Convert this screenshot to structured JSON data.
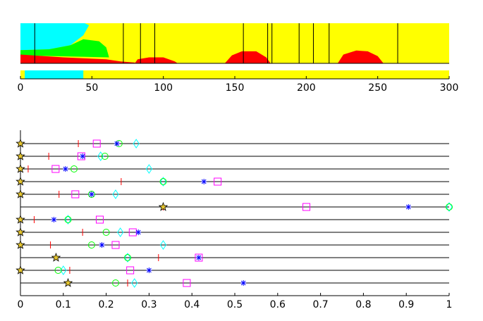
{
  "colors": {
    "yellow": "#ffff00",
    "cyan": "#00ffff",
    "green": "#00ff00",
    "red": "#ff0000",
    "blue": "#0000ff",
    "magenta": "#ff00ff",
    "star": "#e6c630",
    "line": "#000000"
  },
  "chart_data": [
    {
      "type": "area",
      "name_key": "top-band-chart",
      "xlim": [
        0,
        300
      ],
      "x_ticks": [
        0,
        50,
        100,
        150,
        200,
        250,
        300
      ],
      "x_tick_labels": [
        "0",
        "50",
        "100",
        "150",
        "200",
        "250",
        "300"
      ],
      "segments_x": [
        10,
        72,
        84,
        94,
        156,
        173,
        176,
        195,
        205,
        216,
        264
      ],
      "cyan_profile": [
        [
          0,
          1
        ],
        [
          45,
          1
        ],
        [
          48,
          0.95
        ],
        [
          44,
          0.7
        ],
        [
          35,
          0.45
        ],
        [
          20,
          0.35
        ],
        [
          0,
          0.33
        ]
      ],
      "green_profile": [
        [
          0,
          0.33
        ],
        [
          20,
          0.35
        ],
        [
          35,
          0.45
        ],
        [
          44,
          0.6
        ],
        [
          55,
          0.55
        ],
        [
          60,
          0.4
        ],
        [
          62,
          0.15
        ],
        [
          0,
          0.2
        ]
      ],
      "red_profiles": [
        [
          [
            0,
            0
          ],
          [
            0,
            0.22
          ],
          [
            30,
            0.15
          ],
          [
            60,
            0.1
          ],
          [
            70,
            0.05
          ],
          [
            80,
            0.02
          ],
          [
            80,
            0
          ]
        ],
        [
          [
            80,
            0
          ],
          [
            82,
            0.1
          ],
          [
            90,
            0.15
          ],
          [
            100,
            0.15
          ],
          [
            108,
            0.05
          ],
          [
            110,
            0
          ]
        ],
        [
          [
            143,
            0
          ],
          [
            148,
            0.2
          ],
          [
            155,
            0.3
          ],
          [
            165,
            0.3
          ],
          [
            172,
            0.15
          ],
          [
            175,
            0
          ]
        ],
        [
          [
            222,
            0
          ],
          [
            226,
            0.22
          ],
          [
            235,
            0.32
          ],
          [
            243,
            0.3
          ],
          [
            250,
            0.18
          ],
          [
            254,
            0
          ]
        ]
      ],
      "bar_cyan_range": [
        3,
        44
      ]
    },
    {
      "type": "scatter",
      "name_key": "marker-rows-chart",
      "xlim": [
        0,
        1
      ],
      "x_ticks": [
        0,
        0.1,
        0.2,
        0.3,
        0.4,
        0.5,
        0.6,
        0.7,
        0.8,
        0.9,
        1
      ],
      "x_tick_labels": [
        "0",
        "0.1",
        "0.2",
        "0.3",
        "0.4",
        "0.5",
        "0.6",
        "0.7",
        "0.8",
        "0.9",
        "1"
      ],
      "rows": [
        {
          "star": 0,
          "tick": 0.135,
          "square": 0.178,
          "asterisk": 0.225,
          "circle": 0.23,
          "diamond": 0.27
        },
        {
          "star": 0,
          "tick": 0.066,
          "square": 0.142,
          "asterisk": 0.145,
          "circle": 0.197,
          "diamond": 0.187
        },
        {
          "star": 0,
          "tick": 0.018,
          "square": 0.082,
          "asterisk": 0.105,
          "circle": 0.125,
          "diamond": 0.3
        },
        {
          "star": 0,
          "tick": 0.235,
          "square": 0.46,
          "asterisk": 0.428,
          "circle": 0.333,
          "diamond": 0.333
        },
        {
          "star": 0,
          "tick": 0.09,
          "square": 0.128,
          "asterisk": 0.166,
          "circle": 0.166,
          "diamond": 0.222
        },
        {
          "star": 0.333,
          "tick": 0.333,
          "square": 0.667,
          "asterisk": 0.905,
          "circle": 1.0,
          "diamond": 1.0
        },
        {
          "star": 0,
          "tick": 0.032,
          "square": 0.185,
          "asterisk": 0.078,
          "circle": 0.111,
          "diamond": 0.111
        },
        {
          "star": 0,
          "tick": 0.145,
          "square": 0.262,
          "asterisk": 0.275,
          "circle": 0.2,
          "diamond": 0.233
        },
        {
          "star": 0,
          "tick": 0.07,
          "square": 0.222,
          "asterisk": 0.19,
          "circle": 0.166,
          "diamond": 0.333
        },
        {
          "star": 0.083,
          "tick": 0.322,
          "square": 0.416,
          "asterisk": 0.416,
          "circle": 0.25,
          "diamond": 0.25
        },
        {
          "star": 0,
          "tick": 0.115,
          "square": 0.256,
          "asterisk": 0.3,
          "circle": 0.088,
          "diamond": 0.1
        },
        {
          "star": 0.111,
          "tick": 0.25,
          "square": 0.388,
          "asterisk": 0.52,
          "circle": 0.222,
          "diamond": 0.266
        }
      ]
    }
  ]
}
